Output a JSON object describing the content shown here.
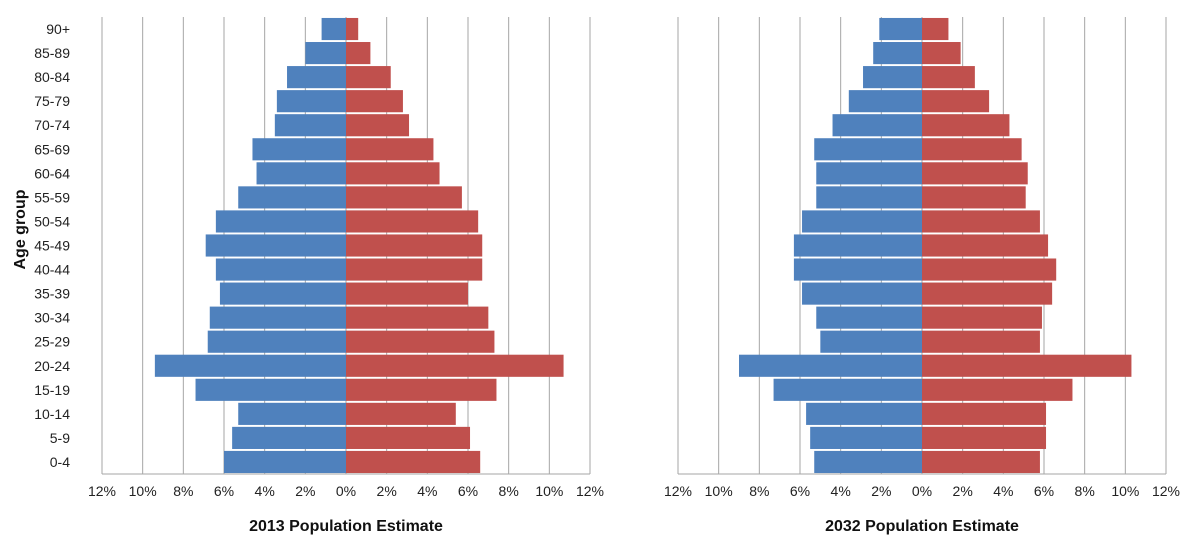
{
  "chart_data": [
    {
      "type": "bar",
      "orientation": "horizontal-pyramid",
      "xlabel": "2013 Population Estimate",
      "ylabel": "Age group",
      "x_tick_labels": [
        "12%",
        "10%",
        "8%",
        "6%",
        "4%",
        "2%",
        "0%",
        "2%",
        "4%",
        "6%",
        "8%",
        "10%",
        "12%"
      ],
      "xlim": [
        -12,
        12
      ],
      "grid": "vertical",
      "categories": [
        "0-4",
        "5-9",
        "10-14",
        "15-19",
        "20-24",
        "25-29",
        "30-34",
        "35-39",
        "40-44",
        "45-49",
        "50-54",
        "55-59",
        "60-64",
        "65-69",
        "70-74",
        "75-79",
        "80-84",
        "85-89",
        "90+"
      ],
      "series": [
        {
          "color": "#4f81bd",
          "side": "left",
          "values": [
            6.0,
            5.6,
            5.3,
            7.4,
            9.4,
            6.8,
            6.7,
            6.2,
            6.4,
            6.9,
            6.4,
            5.3,
            4.4,
            4.6,
            3.5,
            3.4,
            2.9,
            2.0,
            1.2
          ]
        },
        {
          "color": "#c0504d",
          "side": "right",
          "values": [
            6.6,
            6.1,
            5.4,
            7.4,
            10.7,
            7.3,
            7.0,
            6.0,
            6.7,
            6.7,
            6.5,
            5.7,
            4.6,
            4.3,
            3.1,
            2.8,
            2.2,
            1.2,
            0.6
          ]
        }
      ]
    },
    {
      "type": "bar",
      "orientation": "horizontal-pyramid",
      "xlabel": "2032 Population Estimate",
      "ylabel": "",
      "x_tick_labels": [
        "12%",
        "10%",
        "8%",
        "6%",
        "4%",
        "2%",
        "0%",
        "2%",
        "4%",
        "6%",
        "8%",
        "10%",
        "12%"
      ],
      "xlim": [
        -12,
        12
      ],
      "grid": "vertical",
      "categories": [
        "0-4",
        "5-9",
        "10-14",
        "15-19",
        "20-24",
        "25-29",
        "30-34",
        "35-39",
        "40-44",
        "45-49",
        "50-54",
        "55-59",
        "60-64",
        "65-69",
        "70-74",
        "75-79",
        "80-84",
        "85-89",
        "90+"
      ],
      "series": [
        {
          "color": "#4f81bd",
          "side": "left",
          "values": [
            5.3,
            5.5,
            5.7,
            7.3,
            9.0,
            5.0,
            5.2,
            5.9,
            6.3,
            6.3,
            5.9,
            5.2,
            5.2,
            5.3,
            4.4,
            3.6,
            2.9,
            2.4,
            2.1
          ]
        },
        {
          "color": "#c0504d",
          "side": "right",
          "values": [
            5.8,
            6.1,
            6.1,
            7.4,
            10.3,
            5.8,
            5.9,
            6.4,
            6.6,
            6.2,
            5.8,
            5.1,
            5.2,
            4.9,
            4.3,
            3.3,
            2.6,
            1.9,
            1.3
          ]
        }
      ]
    }
  ]
}
